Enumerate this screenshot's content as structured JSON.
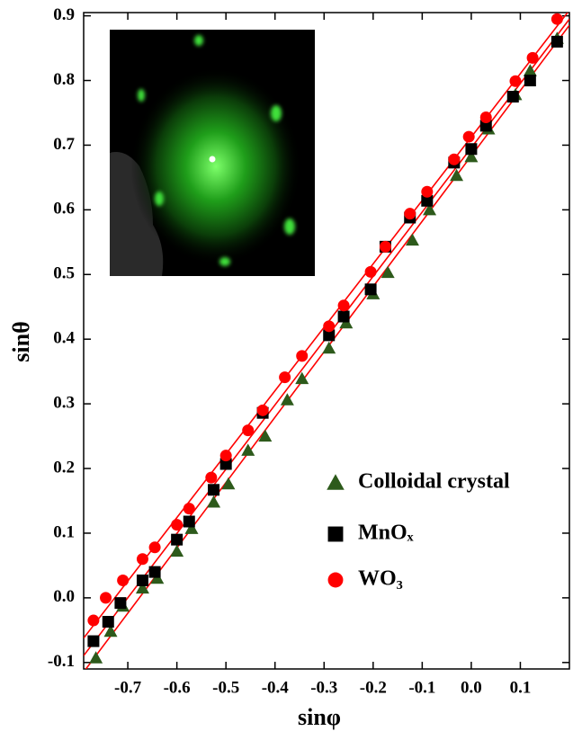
{
  "chart_data": {
    "type": "scatter",
    "x_label": "sinφ",
    "y_label": "sinθ",
    "xlim": [
      -0.79,
      0.2
    ],
    "ylim": [
      -0.11,
      0.905
    ],
    "xticks": [
      -0.7,
      -0.6,
      -0.5,
      -0.4,
      -0.3,
      -0.2,
      -0.1,
      {
        "value": 0,
        "label": "0.0"
      },
      0.1
    ],
    "yticks": [
      -0.1,
      {
        "value": 0,
        "label": "0.0"
      },
      0.1,
      0.2,
      0.3,
      0.4,
      0.5,
      0.6,
      0.7,
      0.8,
      0.9
    ],
    "fit": true,
    "fit_color": "#ff0000",
    "legend": "lower right",
    "series": [
      {
        "name": "Colloidal crystal",
        "color": "#2d5a1b",
        "marker": "triangle",
        "x": [
          -0.765,
          -0.735,
          -0.71,
          -0.67,
          -0.64,
          -0.6,
          -0.57,
          -0.525,
          -0.495,
          -0.455,
          -0.42,
          -0.375,
          -0.345,
          -0.29,
          -0.255,
          -0.2,
          -0.17,
          -0.12,
          -0.085,
          -0.03,
          0.0,
          0.035,
          0.09,
          0.12,
          0.175
        ],
        "values": [
          -0.093,
          -0.052,
          -0.013,
          0.015,
          0.03,
          0.072,
          0.107,
          0.148,
          0.176,
          0.228,
          0.25,
          0.306,
          0.339,
          0.386,
          0.425,
          0.47,
          0.503,
          0.553,
          0.6,
          0.653,
          0.682,
          0.725,
          0.778,
          0.815,
          0.865
        ]
      },
      {
        "name": "MnOₓ",
        "color": "#000000",
        "marker": "square",
        "x": [
          -0.77,
          -0.74,
          -0.715,
          -0.67,
          -0.645,
          -0.6,
          -0.575,
          -0.525,
          -0.5,
          -0.425,
          -0.29,
          -0.26,
          -0.205,
          -0.175,
          -0.125,
          -0.09,
          -0.035,
          0.0,
          0.03,
          0.085,
          0.12,
          0.175
        ],
        "values": [
          -0.067,
          -0.037,
          -0.008,
          0.027,
          0.04,
          0.09,
          0.118,
          0.167,
          0.207,
          0.286,
          0.406,
          0.435,
          0.477,
          0.543,
          0.588,
          0.614,
          0.673,
          0.694,
          0.73,
          0.775,
          0.8,
          0.86
        ]
      },
      {
        "name": "WO₃",
        "color": "#ff0000",
        "marker": "circle",
        "x": [
          -0.77,
          -0.745,
          -0.71,
          -0.67,
          -0.645,
          -0.6,
          -0.575,
          -0.53,
          -0.5,
          -0.455,
          -0.425,
          -0.38,
          -0.345,
          -0.29,
          -0.26,
          -0.205,
          -0.175,
          -0.125,
          -0.09,
          -0.035,
          -0.005,
          0.03,
          0.09,
          0.125,
          0.175
        ],
        "values": [
          -0.035,
          0.0,
          0.027,
          0.06,
          0.078,
          0.113,
          0.138,
          0.186,
          0.22,
          0.259,
          0.29,
          0.341,
          0.374,
          0.42,
          0.452,
          0.504,
          0.543,
          0.594,
          0.628,
          0.678,
          0.713,
          0.743,
          0.799,
          0.835,
          0.895
        ]
      }
    ]
  }
}
